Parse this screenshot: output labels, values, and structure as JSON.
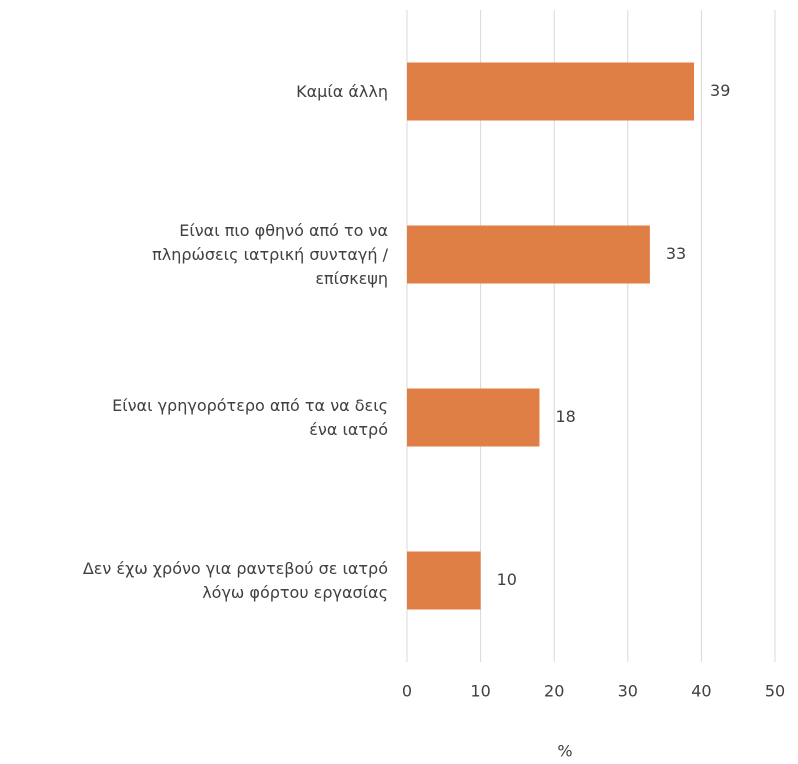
{
  "chart_data": {
    "type": "bar",
    "orientation": "horizontal",
    "categories": [
      "Καμία άλλη",
      "Είναι πιο φθηνό από το να\nπληρώσεις ιατρική συνταγή /\nεπίσκεψη",
      "Είναι γρηγορότερο από τα να δεις\nένα ιατρό",
      "Δεν έχω χρόνο για ραντεβού σε ιατρό\nλόγω φόρτου εργασίας"
    ],
    "values": [
      39,
      33,
      18,
      10
    ],
    "color": "#e07f45",
    "xlabel": "%",
    "xlim": [
      0,
      50
    ],
    "xticks": [
      0,
      10,
      20,
      30,
      40,
      50
    ],
    "grid": true
  }
}
